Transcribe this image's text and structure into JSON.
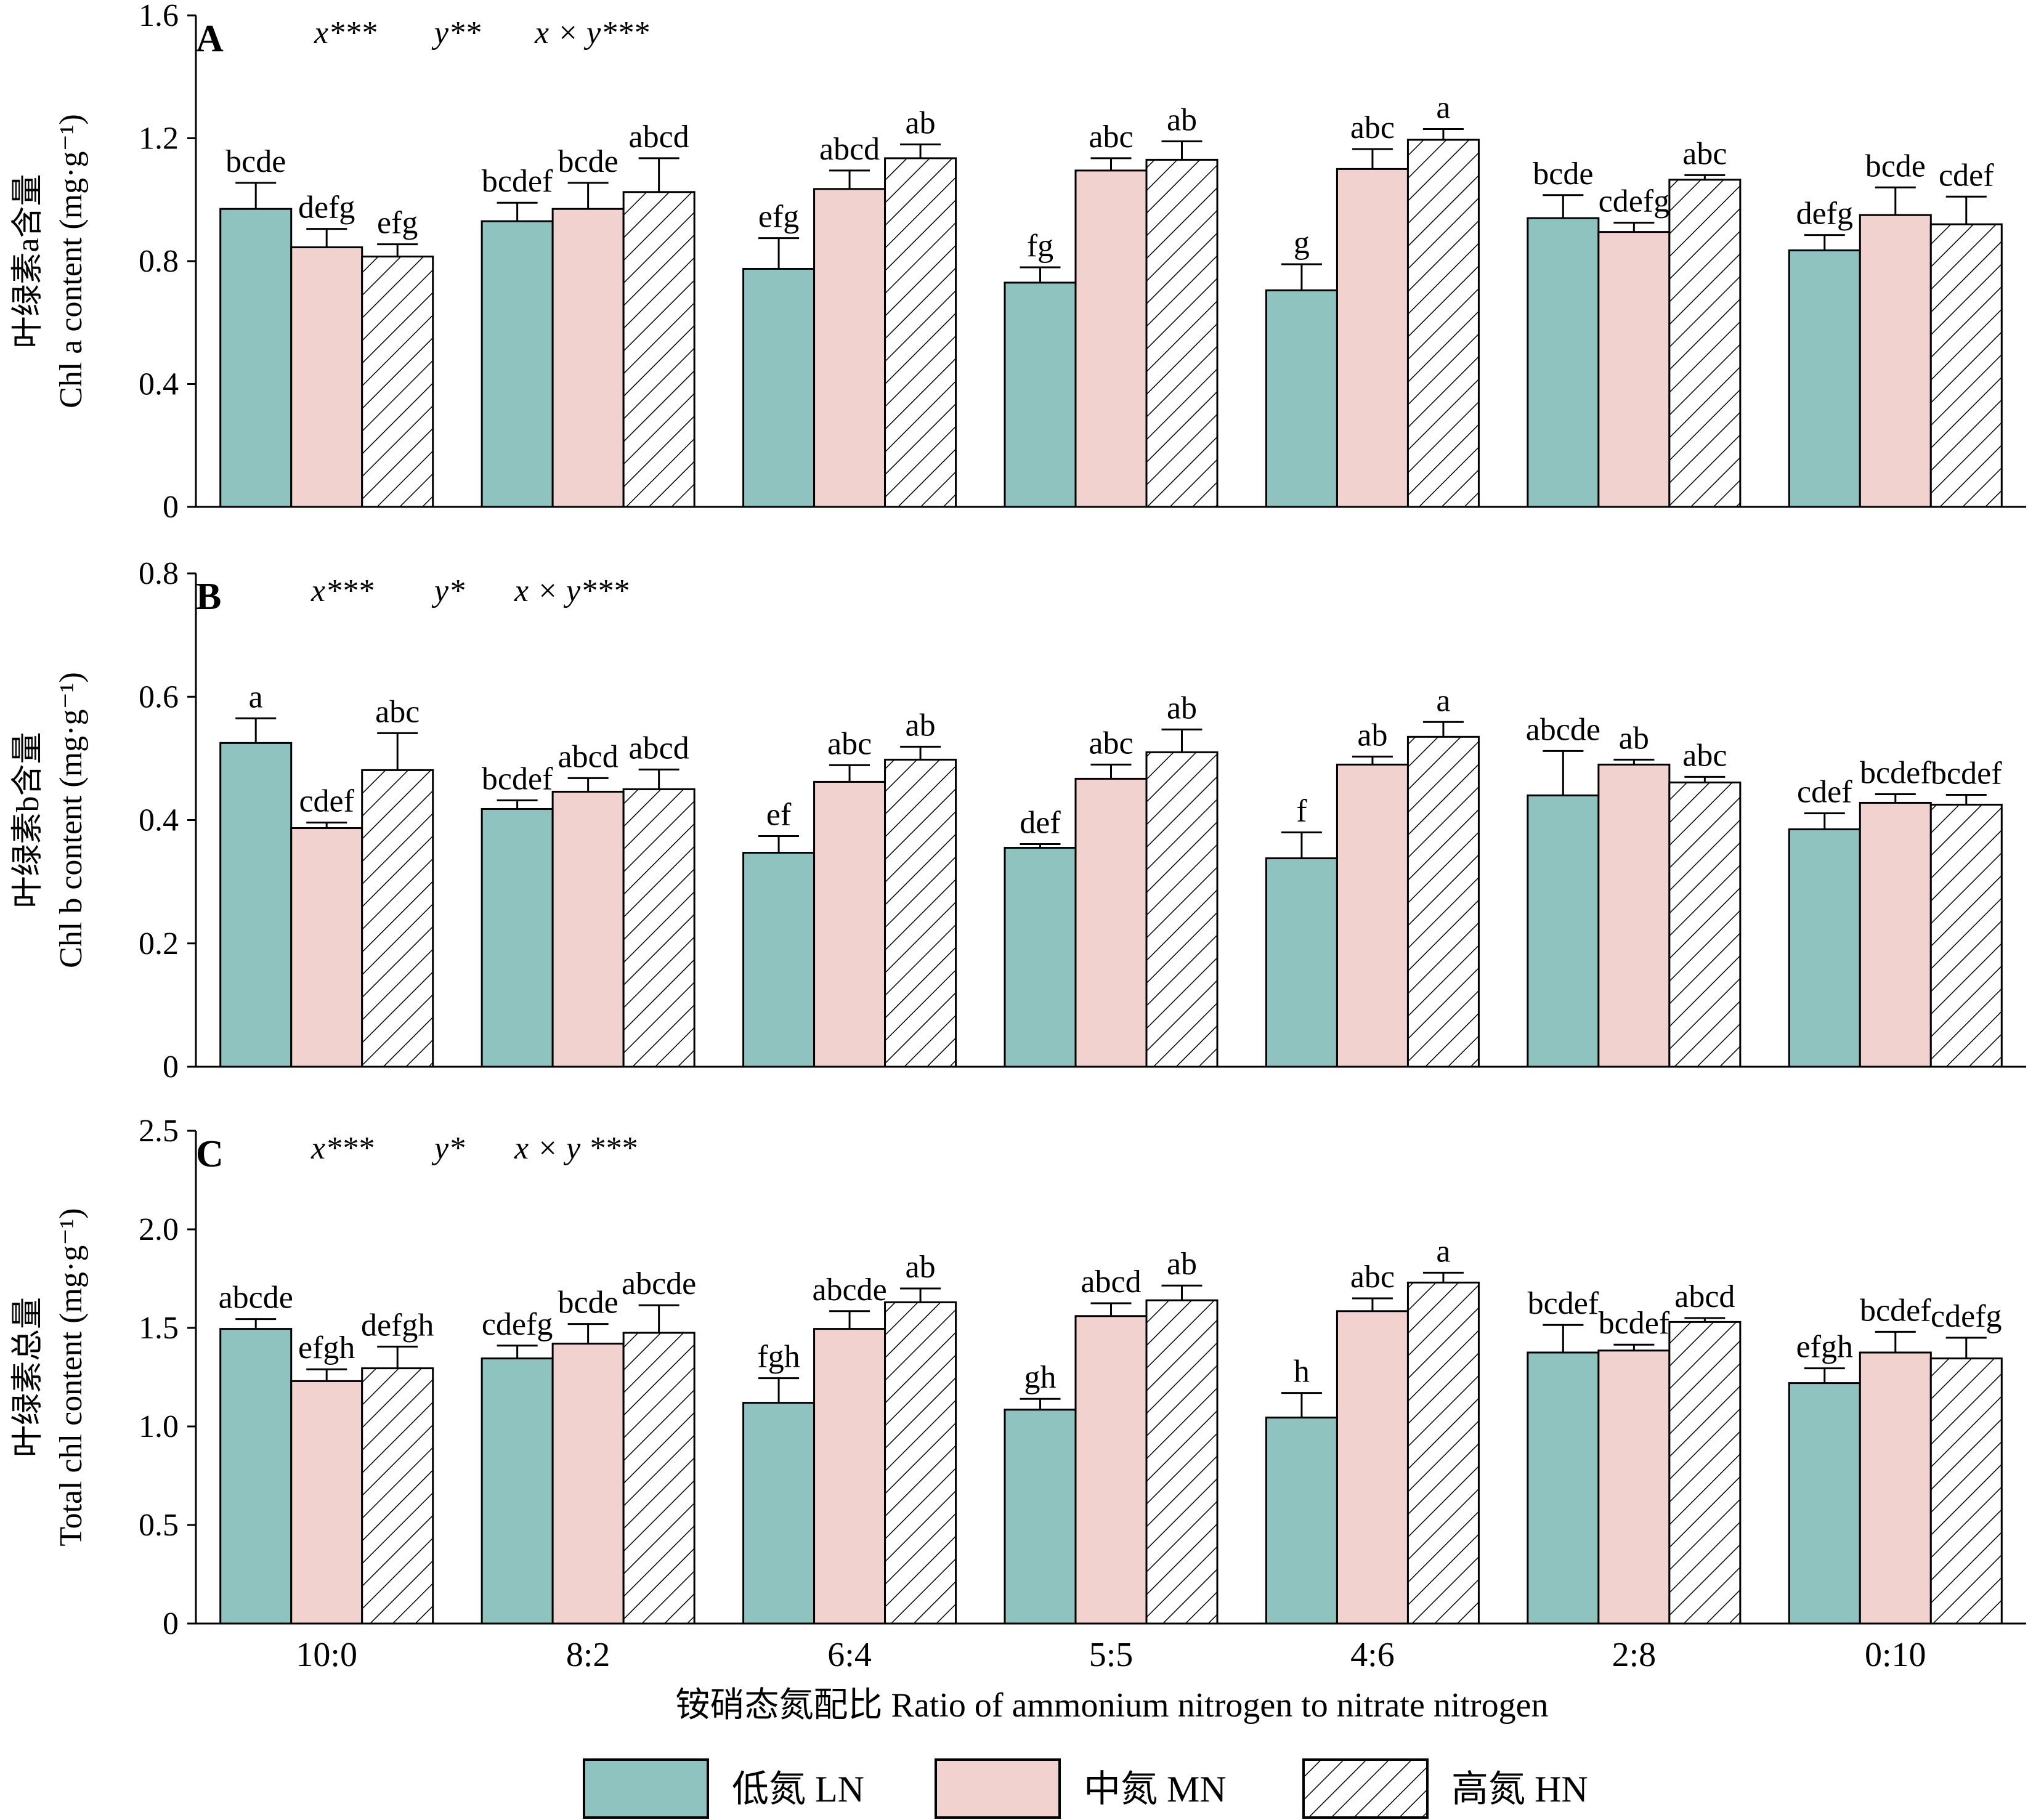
{
  "chart_data": {
    "type": "bar",
    "xlabel": "铵硝态氮配比 Ratio of ammonium nitrogen to nitrate nitrogen",
    "categories": [
      "10:0",
      "8:2",
      "6:4",
      "5:5",
      "4:6",
      "2:8",
      "0:10"
    ],
    "legend": [
      {
        "name": "低氮 LN",
        "color": "#8fc3bf",
        "pattern": "solid"
      },
      {
        "name": "中氮 MN",
        "color": "#f2d2ce",
        "pattern": "solid"
      },
      {
        "name": "高氮 HN",
        "color": "#ffffff",
        "pattern": "hatch"
      }
    ],
    "legend_position": "bottom",
    "panels": [
      {
        "label": "A",
        "stats": [
          "x***",
          "y**",
          "x × y***"
        ],
        "ylabel_zh": "叶绿素a含量",
        "ylabel_en": "Chl a content (mg·g⁻¹)",
        "ylim": [
          0,
          1.6
        ],
        "yticks": [
          "0",
          "0.4",
          "0.8",
          "1.2",
          "1.6"
        ],
        "ytick_values": [
          0,
          0.4,
          0.8,
          1.2,
          1.6
        ],
        "series": [
          {
            "name": "低氮 LN",
            "values": [
              0.97,
              0.93,
              0.775,
              0.73,
              0.705,
              0.94,
              0.835
            ],
            "errors": [
              0.085,
              0.06,
              0.1,
              0.05,
              0.085,
              0.075,
              0.05
            ],
            "letters": [
              "bcde",
              "bcdef",
              "efg",
              "fg",
              "g",
              "bcde",
              "defg"
            ]
          },
          {
            "name": "中氮 MN",
            "values": [
              0.845,
              0.97,
              1.035,
              1.095,
              1.1,
              0.895,
              0.95
            ],
            "errors": [
              0.06,
              0.085,
              0.06,
              0.04,
              0.065,
              0.03,
              0.09
            ],
            "letters": [
              "defg",
              "bcde",
              "abcd",
              "abc",
              "abc",
              "cdefg",
              "bcde"
            ]
          },
          {
            "name": "高氮 HN",
            "values": [
              0.815,
              1.025,
              1.135,
              1.13,
              1.195,
              1.065,
              0.92
            ],
            "errors": [
              0.04,
              0.11,
              0.045,
              0.06,
              0.035,
              0.015,
              0.09
            ],
            "letters": [
              "efg",
              "abcd",
              "ab",
              "ab",
              "a",
              "abc",
              "cdef"
            ]
          }
        ]
      },
      {
        "label": "B",
        "stats": [
          "x***",
          "y*",
          "x × y***"
        ],
        "ylabel_zh": "叶绿素b含量",
        "ylabel_en": "Chl b content (mg·g⁻¹)",
        "ylim": [
          0,
          0.8
        ],
        "yticks": [
          "0",
          "0.2",
          "0.4",
          "0.6",
          "0.8"
        ],
        "ytick_values": [
          0,
          0.2,
          0.4,
          0.6,
          0.8
        ],
        "series": [
          {
            "name": "低氮 LN",
            "values": [
              0.525,
              0.418,
              0.347,
              0.355,
              0.338,
              0.44,
              0.385
            ],
            "errors": [
              0.04,
              0.014,
              0.027,
              0.006,
              0.042,
              0.072,
              0.026
            ],
            "letters": [
              "a",
              "bcdef",
              "ef",
              "def",
              "f",
              "abcde",
              "cdef"
            ]
          },
          {
            "name": "中氮 MN",
            "values": [
              0.387,
              0.446,
              0.462,
              0.467,
              0.49,
              0.49,
              0.428
            ],
            "errors": [
              0.009,
              0.022,
              0.027,
              0.023,
              0.013,
              0.008,
              0.014
            ],
            "letters": [
              "cdef",
              "abcd",
              "abc",
              "abc",
              "ab",
              "ab",
              "bcdef"
            ]
          },
          {
            "name": "高氮 HN",
            "values": [
              0.481,
              0.45,
              0.498,
              0.51,
              0.535,
              0.461,
              0.425
            ],
            "errors": [
              0.06,
              0.032,
              0.021,
              0.037,
              0.024,
              0.009,
              0.016
            ],
            "letters": [
              "abc",
              "abcd",
              "ab",
              "ab",
              "a",
              "abc",
              "bcdef"
            ]
          }
        ]
      },
      {
        "label": "C",
        "stats": [
          "x***",
          "y*",
          "x × y ***"
        ],
        "ylabel_zh": "叶绿素总量",
        "ylabel_en": "Total chl content (mg·g⁻¹)",
        "ylim": [
          0,
          2.5
        ],
        "yticks": [
          "0",
          "0.5",
          "1.0",
          "1.5",
          "2.0",
          "2.5"
        ],
        "ytick_values": [
          0,
          0.5,
          1.0,
          1.5,
          2.0,
          2.5
        ],
        "series": [
          {
            "name": "低氮 LN",
            "values": [
              1.495,
              1.345,
              1.12,
              1.085,
              1.045,
              1.375,
              1.22
            ],
            "errors": [
              0.05,
              0.065,
              0.125,
              0.055,
              0.125,
              0.14,
              0.075
            ],
            "letters": [
              "abcde",
              "cdefg",
              "fgh",
              "gh",
              "h",
              "bcdef",
              "efgh"
            ]
          },
          {
            "name": "中氮 MN",
            "values": [
              1.23,
              1.42,
              1.495,
              1.56,
              1.585,
              1.385,
              1.375
            ],
            "errors": [
              0.06,
              0.1,
              0.09,
              0.065,
              0.065,
              0.03,
              0.105
            ],
            "letters": [
              "efgh",
              "bcde",
              "abcde",
              "abcd",
              "abc",
              "bcdef",
              "bcdef"
            ]
          },
          {
            "name": "高氮 HN",
            "values": [
              1.295,
              1.475,
              1.63,
              1.64,
              1.73,
              1.53,
              1.345
            ],
            "errors": [
              0.11,
              0.14,
              0.07,
              0.075,
              0.05,
              0.02,
              0.105
            ],
            "letters": [
              "defgh",
              "abcde",
              "ab",
              "ab",
              "a",
              "abcd",
              "cdefg"
            ]
          }
        ]
      }
    ]
  }
}
